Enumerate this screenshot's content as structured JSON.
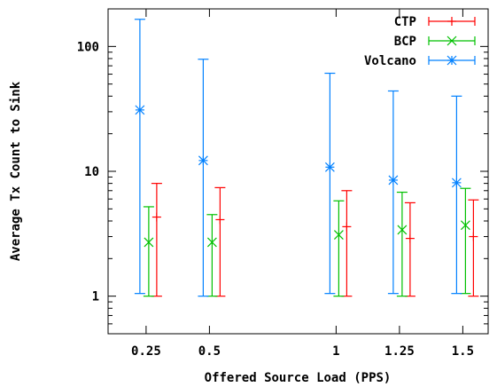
{
  "chart_data": {
    "type": "scatter",
    "title": "",
    "xlabel": "Offered Source Load (PPS)",
    "ylabel": "Average Tx Count to Sink",
    "x_scale": "linear",
    "y_scale": "log",
    "xlim": [
      0.1,
      1.6
    ],
    "ylim": [
      0.5,
      200
    ],
    "x_ticks": [
      0.25,
      0.5,
      1,
      1.25,
      1.5
    ],
    "x_tick_labels": [
      "0.25",
      "0.5",
      "1",
      "1.25",
      "1.5"
    ],
    "y_ticks": [
      1,
      10,
      100
    ],
    "y_tick_labels": [
      "1",
      "10",
      "100"
    ],
    "grid": false,
    "legend_position": "top-right",
    "series": [
      {
        "name": "CTP",
        "color": "#ff0000",
        "marker": "plus",
        "points": [
          {
            "x": 0.25,
            "y": 4.3,
            "low": 1.0,
            "high": 8.0
          },
          {
            "x": 0.5,
            "y": 4.1,
            "low": 1.0,
            "high": 7.4
          },
          {
            "x": 1,
            "y": 3.6,
            "low": 1.0,
            "high": 7.0
          },
          {
            "x": 1.25,
            "y": 2.9,
            "low": 1.0,
            "high": 5.6
          },
          {
            "x": 1.5,
            "y": 3.0,
            "low": 1.0,
            "high": 5.9
          }
        ]
      },
      {
        "name": "BCP",
        "color": "#00c000",
        "marker": "x",
        "points": [
          {
            "x": 0.25,
            "y": 2.7,
            "low": 1.0,
            "high": 5.2
          },
          {
            "x": 0.5,
            "y": 2.7,
            "low": 1.0,
            "high": 4.5
          },
          {
            "x": 1,
            "y": 3.1,
            "low": 1.0,
            "high": 5.8
          },
          {
            "x": 1.25,
            "y": 3.4,
            "low": 1.0,
            "high": 6.8
          },
          {
            "x": 1.5,
            "y": 3.7,
            "low": 1.05,
            "high": 7.3
          }
        ]
      },
      {
        "name": "Volcano",
        "color": "#0080ff",
        "marker": "star",
        "points": [
          {
            "x": 0.25,
            "y": 31,
            "low": 1.05,
            "high": 165
          },
          {
            "x": 0.5,
            "y": 12.2,
            "low": 1.0,
            "high": 79
          },
          {
            "x": 1,
            "y": 10.8,
            "low": 1.05,
            "high": 61
          },
          {
            "x": 1.25,
            "y": 8.5,
            "low": 1.05,
            "high": 44
          },
          {
            "x": 1.5,
            "y": 8.1,
            "low": 1.05,
            "high": 40
          }
        ]
      }
    ]
  }
}
